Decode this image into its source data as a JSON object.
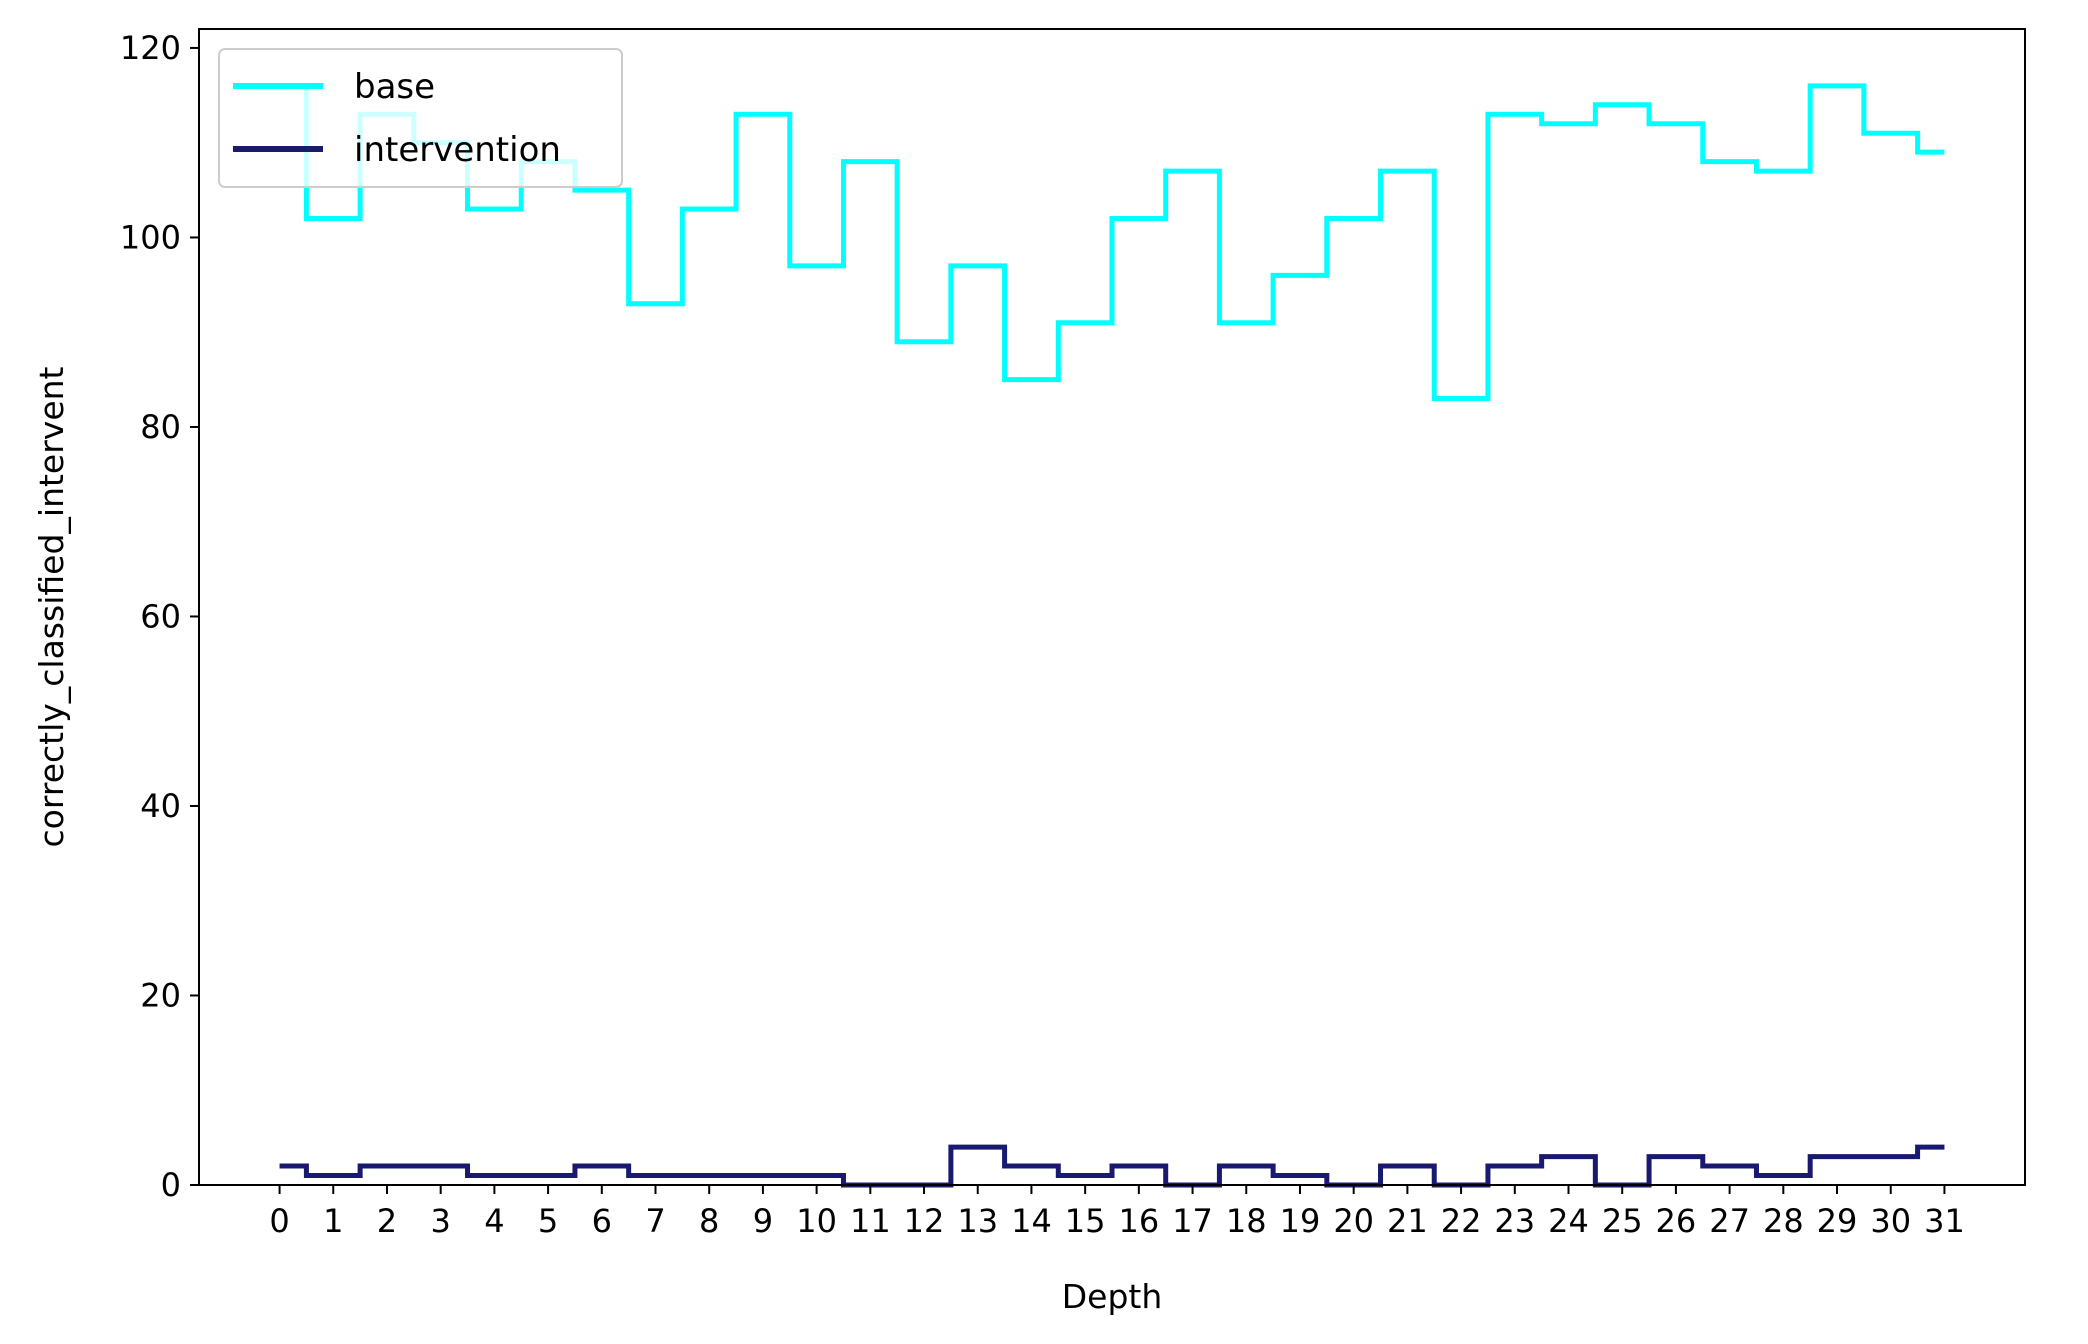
{
  "chart_data": {
    "type": "line",
    "drawstyle": "steps-mid",
    "title": "",
    "xlabel": "Depth",
    "ylabel": "correctly_classified_intervent",
    "xlim": [
      -1.5,
      32.5
    ],
    "ylim": [
      0,
      122
    ],
    "xticks": [
      0,
      1,
      2,
      3,
      4,
      5,
      6,
      7,
      8,
      9,
      10,
      11,
      12,
      13,
      14,
      15,
      16,
      17,
      18,
      19,
      20,
      21,
      22,
      23,
      24,
      25,
      26,
      27,
      28,
      29,
      30,
      31
    ],
    "yticks": [
      0,
      20,
      40,
      60,
      80,
      100,
      120
    ],
    "grid": false,
    "legend": {
      "position": "upper-left"
    },
    "x": [
      0,
      1,
      2,
      3,
      4,
      5,
      6,
      7,
      8,
      9,
      10,
      11,
      12,
      13,
      14,
      15,
      16,
      17,
      18,
      19,
      20,
      21,
      22,
      23,
      24,
      25,
      26,
      27,
      28,
      29,
      30,
      31
    ],
    "series": [
      {
        "name": "base",
        "color": "#00FFFF",
        "values": [
          116,
          102,
          113,
          110,
          103,
          108,
          105,
          93,
          103,
          113,
          97,
          108,
          89,
          97,
          85,
          91,
          102,
          107,
          91,
          96,
          102,
          107,
          83,
          113,
          112,
          114,
          112,
          108,
          107,
          116,
          111,
          109
        ]
      },
      {
        "name": "intervention",
        "color": "#191970",
        "values": [
          2,
          1,
          2,
          2,
          1,
          1,
          2,
          1,
          1,
          1,
          1,
          0,
          0,
          4,
          2,
          1,
          2,
          0,
          2,
          1,
          0,
          2,
          0,
          2,
          3,
          0,
          3,
          2,
          1,
          3,
          3,
          4
        ]
      }
    ]
  }
}
